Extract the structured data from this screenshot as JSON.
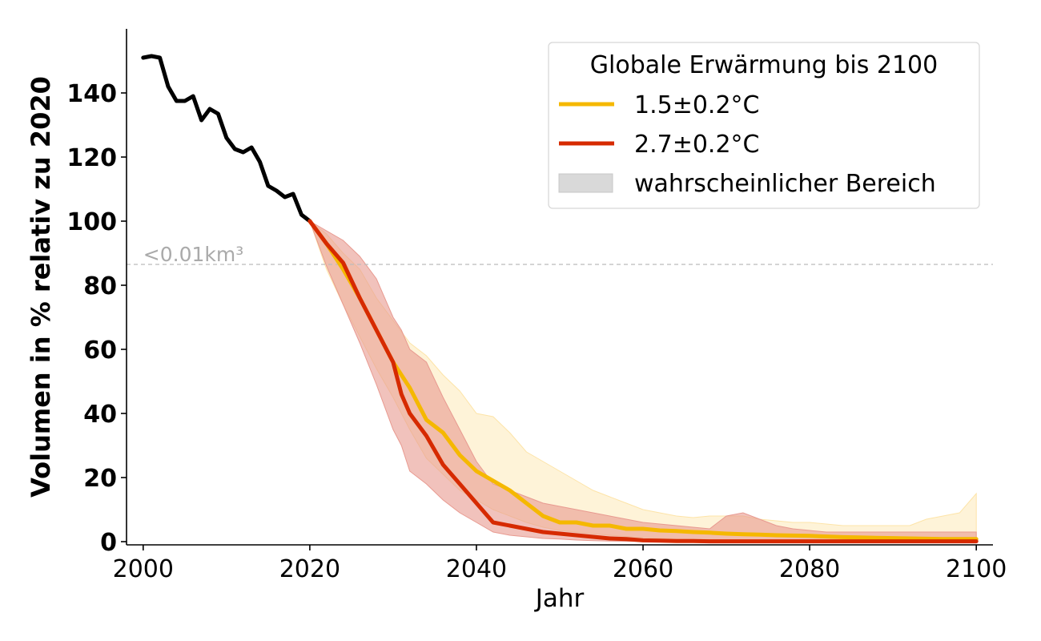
{
  "chart_data": {
    "type": "line",
    "xlabel": "Jahr",
    "ylabel": "Volumen in % relativ zu 2020",
    "xlim": [
      1998,
      2102
    ],
    "ylim": [
      -1,
      160
    ],
    "x_ticks": [
      2000,
      2020,
      2040,
      2060,
      2080,
      2100
    ],
    "y_ticks": [
      0,
      20,
      40,
      60,
      80,
      100,
      120,
      140
    ],
    "grid": false,
    "legend": {
      "title": "Globale Erwärmung bis 2100",
      "position": "top-right",
      "entries": [
        {
          "label": "1.5±0.2°C",
          "color": "#f5b800",
          "kind": "line"
        },
        {
          "label": "2.7±0.2°C",
          "color": "#d62a00",
          "kind": "line"
        },
        {
          "label": "wahrscheinlicher Bereich",
          "color": "#d9d9d9",
          "kind": "patch"
        }
      ]
    },
    "threshold": {
      "y": 86.5,
      "label": "<0.01km³",
      "color": "#bbbbbb"
    },
    "series": [
      {
        "kind": "historical",
        "color": "#000000",
        "x": [
          2000,
          2001,
          2002,
          2003,
          2004,
          2005,
          2006,
          2007,
          2008,
          2009,
          2010,
          2011,
          2012,
          2013,
          2014,
          2015,
          2016,
          2017,
          2018,
          2019,
          2020
        ],
        "values": [
          151,
          151.5,
          151,
          142,
          137.5,
          137.5,
          139,
          131.5,
          135,
          133.5,
          126,
          122.5,
          121.5,
          123,
          118.5,
          111,
          109.5,
          107.5,
          108.5,
          102,
          100
        ]
      },
      {
        "name": "1.5±0.2°C",
        "color": "#f5b800",
        "band_color": "#fde4a8",
        "x": [
          2020,
          2022,
          2024,
          2026,
          2028,
          2030,
          2032,
          2034,
          2036,
          2038,
          2040,
          2042,
          2044,
          2046,
          2048,
          2050,
          2052,
          2054,
          2056,
          2058,
          2060,
          2062,
          2064,
          2066,
          2068,
          2070,
          2072,
          2074,
          2076,
          2078,
          2080,
          2082,
          2084,
          2086,
          2088,
          2090,
          2092,
          2094,
          2096,
          2098,
          2100
        ],
        "values": [
          100,
          93,
          85,
          76,
          66,
          56,
          48,
          38,
          34,
          27,
          22,
          19,
          16,
          12,
          8,
          6,
          6,
          5,
          5,
          4,
          4,
          3.5,
          3.3,
          3,
          2.8,
          2.5,
          2.3,
          2.2,
          2,
          1.9,
          1.8,
          1.6,
          1.4,
          1.3,
          1.2,
          1.1,
          1.0,
          0.9,
          0.8,
          0.8,
          0.8
        ],
        "lower": [
          100,
          85,
          74,
          64,
          54,
          45,
          35,
          26,
          21,
          16,
          13,
          10,
          8,
          6,
          4.5,
          3.5,
          3,
          2.5,
          2,
          1.6,
          1.3,
          1.1,
          0.9,
          0.8,
          0.7,
          0.6,
          0.5,
          0.5,
          0.5,
          0.4,
          0.4,
          0.4,
          0.4,
          0.3,
          0.3,
          0.3,
          0.3,
          0.3,
          0.3,
          0.3,
          0.3
        ],
        "upper": [
          100,
          96,
          90,
          85,
          76,
          69,
          62,
          58,
          52,
          47,
          40,
          39,
          34,
          28,
          25,
          22,
          19,
          16,
          14,
          12,
          10,
          9,
          8,
          7.5,
          8,
          8,
          8,
          7,
          6.5,
          6,
          6,
          5.5,
          5,
          5,
          5,
          5,
          5,
          7,
          8,
          9,
          15
        ]
      },
      {
        "name": "2.7±0.2°C",
        "color": "#d62a00",
        "band_color": "#e89a90",
        "x": [
          2020,
          2022,
          2024,
          2026,
          2028,
          2030,
          2031,
          2032,
          2034,
          2036,
          2038,
          2040,
          2042,
          2044,
          2046,
          2048,
          2050,
          2052,
          2054,
          2056,
          2058,
          2060,
          2062,
          2064,
          2066,
          2068,
          2070,
          2072,
          2074,
          2076,
          2078,
          2080,
          2082,
          2084,
          2086,
          2088,
          2090,
          2092,
          2094,
          2096,
          2098,
          2100
        ],
        "values": [
          100,
          93,
          87,
          76,
          66,
          56,
          46,
          40,
          33,
          24,
          18,
          12,
          6,
          5,
          4,
          3,
          2.5,
          2,
          1.5,
          1,
          0.8,
          0.4,
          0.3,
          0.2,
          0.2,
          0.1,
          0.1,
          0.1,
          0.1,
          0.1,
          0.1,
          0.1,
          0.1,
          0.1,
          0.1,
          0.1,
          0.1,
          0.1,
          0.1,
          0.1,
          0.1,
          0.1
        ],
        "lower": [
          100,
          86,
          74,
          62,
          49,
          35,
          30,
          22,
          18,
          13,
          9,
          6,
          3,
          2,
          1.5,
          1,
          0.8,
          0.5,
          0.3,
          0.2,
          0.1,
          0.1,
          0.1,
          0.1,
          0.1,
          0.1,
          0.1,
          0.1,
          0.1,
          0.1,
          0.1,
          0.1,
          0.1,
          0.1,
          0.1,
          0.1,
          0.1,
          0.1,
          0.1,
          0.1,
          0.1,
          0.1
        ],
        "upper": [
          100,
          97,
          94,
          89,
          82,
          70,
          66,
          60,
          56,
          45,
          35,
          25,
          18,
          16,
          14,
          12,
          11,
          10,
          9,
          8,
          7,
          6,
          5.5,
          5,
          4.5,
          4,
          8,
          9,
          7,
          5,
          4,
          3.5,
          3,
          3,
          3,
          3,
          3,
          3,
          3,
          3,
          3,
          3
        ]
      }
    ]
  }
}
